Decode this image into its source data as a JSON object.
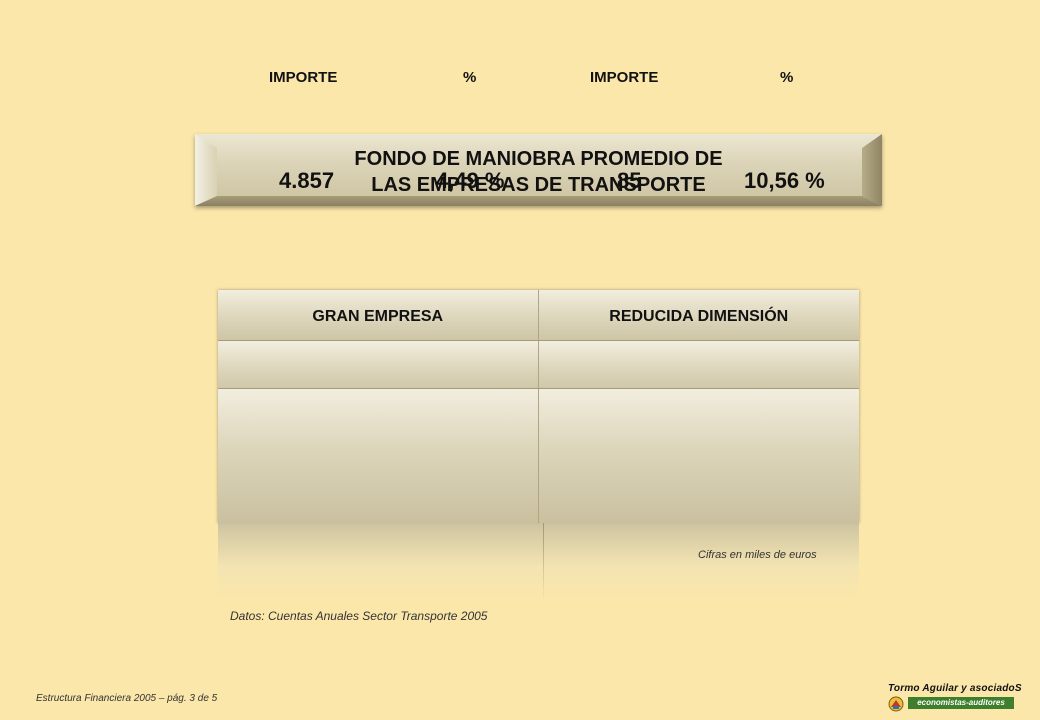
{
  "title": {
    "line1": "FONDO DE MANIOBRA PROMEDIO DE",
    "line2": "LAS EMPRESAS  DE TRANSPORTE"
  },
  "table": {
    "columns": [
      {
        "group": "GRAN  EMPRESA",
        "importe_label": "IMPORTE",
        "pct_label": "%",
        "importe_value": "4.857",
        "pct_value": "4,49 %"
      },
      {
        "group": "REDUCIDA  DIMENSIÓN",
        "importe_label": "IMPORTE",
        "pct_label": "%",
        "importe_value": "85",
        "pct_value": "10,56 %"
      }
    ]
  },
  "notes": {
    "units": "Cifras en miles de euros",
    "source": "Datos: Cuentas Anuales Sector Transporte  2005"
  },
  "footer": {
    "page": "Estructura  Financiera 2005 – pág. 3 de 5"
  },
  "logo": {
    "name": "Tormo  Aguilar  y  asociadoS",
    "tagline": "economistas-auditores"
  },
  "colors": {
    "background": "#fbe7aa",
    "panel": "#dcd5ba",
    "logo_green": "#3d7f2c"
  }
}
